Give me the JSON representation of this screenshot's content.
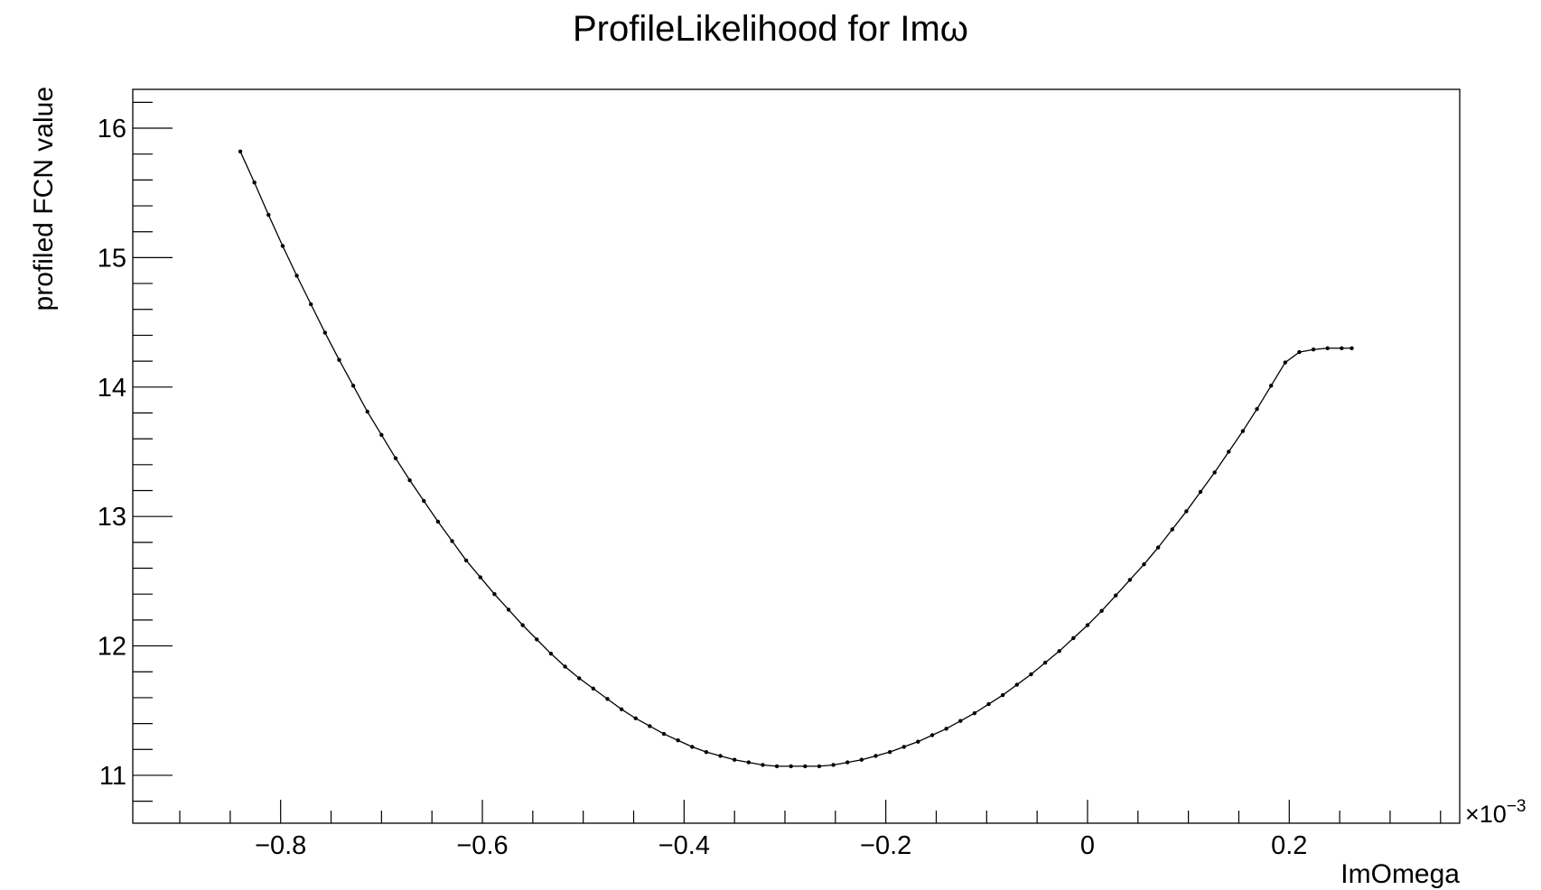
{
  "chart_data": {
    "type": "line",
    "title": "ProfileLikelihood for Imω",
    "xlabel": "ImOmega",
    "ylabel": "profiled FCN value",
    "x_multiplier_base": "×10",
    "x_multiplier_exponent": "−3",
    "xlim": [
      -0.9466,
      0.369
    ],
    "ylim": [
      10.63,
      16.3
    ],
    "x_major_ticks": [
      -0.8,
      -0.6,
      -0.4,
      -0.2,
      0,
      0.2
    ],
    "x_major_tick_labels": [
      "−0.8",
      "−0.6",
      "−0.4",
      "−0.2",
      "0",
      "0.2"
    ],
    "x_minor_step": 0.05,
    "y_major_ticks": [
      11,
      12,
      13,
      14,
      15,
      16
    ],
    "y_major_tick_labels": [
      "11",
      "12",
      "13",
      "14",
      "15",
      "16"
    ],
    "y_minor_step": 0.2,
    "grid": false,
    "legend": "none",
    "series": [
      {
        "color": "#000000",
        "markers": true,
        "x": [
          -0.84,
          -0.826,
          -0.812,
          -0.798,
          -0.784,
          -0.77,
          -0.756,
          -0.742,
          -0.728,
          -0.714,
          -0.7,
          -0.686,
          -0.672,
          -0.658,
          -0.644,
          -0.63,
          -0.616,
          -0.602,
          -0.588,
          -0.574,
          -0.56,
          -0.546,
          -0.532,
          -0.518,
          -0.504,
          -0.49,
          -0.476,
          -0.462,
          -0.448,
          -0.434,
          -0.42,
          -0.406,
          -0.392,
          -0.378,
          -0.364,
          -0.35,
          -0.336,
          -0.322,
          -0.308,
          -0.294,
          -0.28,
          -0.266,
          -0.252,
          -0.238,
          -0.224,
          -0.21,
          -0.196,
          -0.182,
          -0.168,
          -0.154,
          -0.14,
          -0.126,
          -0.112,
          -0.098,
          -0.084,
          -0.07,
          -0.056,
          -0.042,
          -0.028,
          -0.014,
          0.0,
          0.014,
          0.028,
          0.042,
          0.056,
          0.07,
          0.084,
          0.098,
          0.112,
          0.126,
          0.14,
          0.154,
          0.168,
          0.182,
          0.196,
          0.21,
          0.224,
          0.238,
          0.252,
          0.262
        ],
        "y": [
          15.82,
          15.58,
          15.33,
          15.09,
          14.86,
          14.64,
          14.42,
          14.21,
          14.01,
          13.81,
          13.63,
          13.45,
          13.28,
          13.12,
          12.96,
          12.81,
          12.66,
          12.53,
          12.4,
          12.28,
          12.16,
          12.05,
          11.94,
          11.84,
          11.75,
          11.67,
          11.59,
          11.51,
          11.44,
          11.38,
          11.32,
          11.27,
          11.22,
          11.18,
          11.15,
          11.12,
          11.1,
          11.08,
          11.07,
          11.07,
          11.07,
          11.07,
          11.08,
          11.1,
          11.12,
          11.15,
          11.18,
          11.22,
          11.26,
          11.31,
          11.36,
          11.42,
          11.48,
          11.55,
          11.62,
          11.7,
          11.78,
          11.87,
          11.96,
          12.06,
          12.16,
          12.27,
          12.39,
          12.51,
          12.63,
          12.76,
          12.9,
          13.04,
          13.19,
          13.34,
          13.5,
          13.66,
          13.83,
          14.01,
          14.19,
          14.27,
          14.29,
          14.3,
          14.3,
          14.3
        ]
      }
    ]
  }
}
